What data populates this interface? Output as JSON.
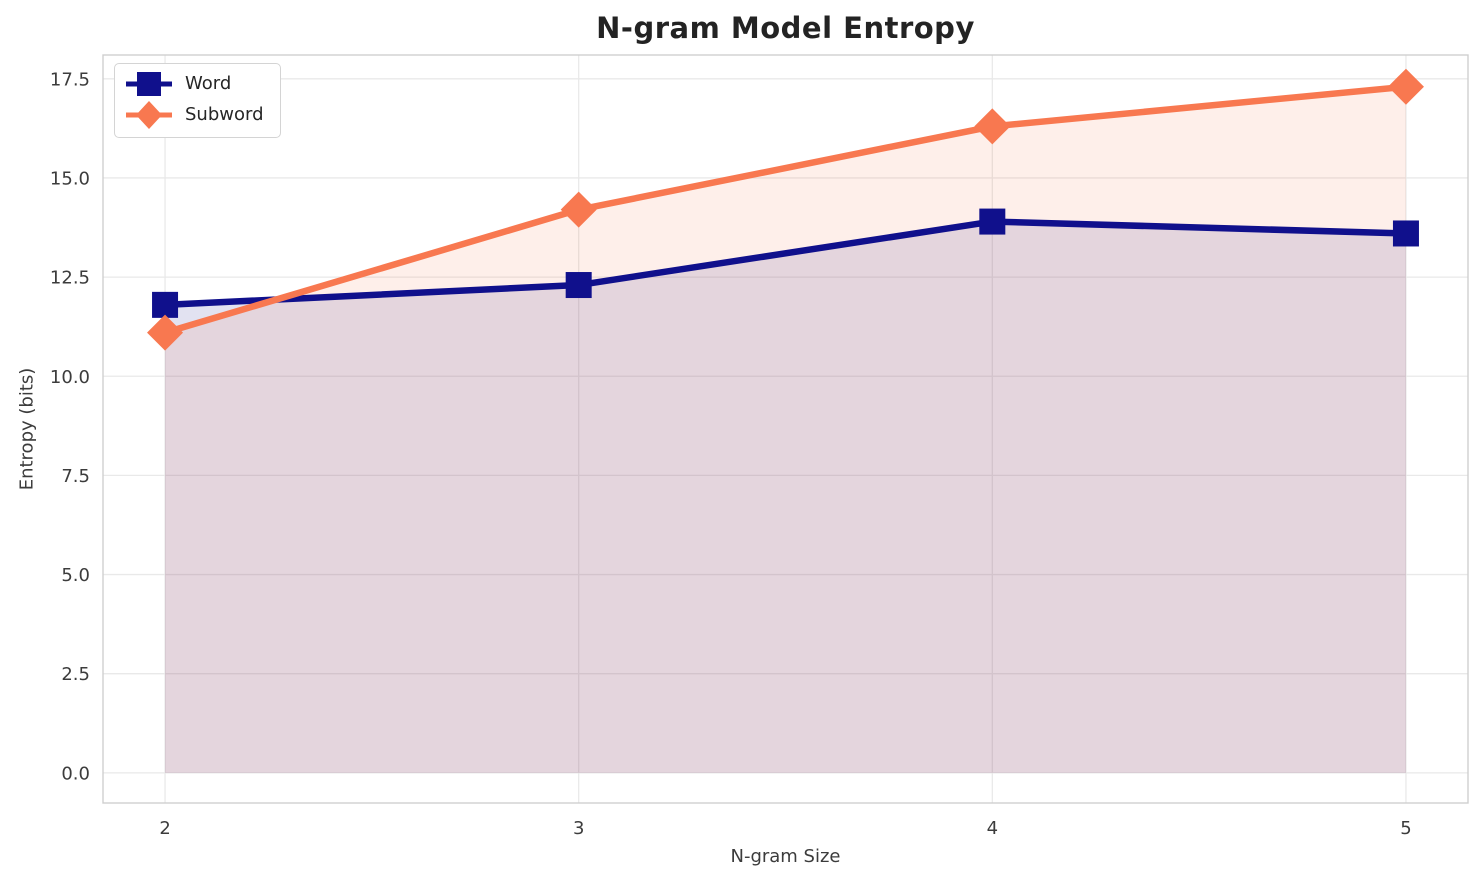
{
  "chart_data": {
    "type": "line",
    "title": "N-gram Model Entropy",
    "xlabel": "N-gram Size",
    "ylabel": "Entropy (bits)",
    "x": [
      2,
      3,
      4,
      5
    ],
    "xtick_labels": [
      "2",
      "3",
      "4",
      "5"
    ],
    "yticks": [
      0.0,
      2.5,
      5.0,
      7.5,
      10.0,
      12.5,
      15.0,
      17.5
    ],
    "ytick_labels": [
      "0.0",
      "2.5",
      "5.0",
      "7.5",
      "10.0",
      "12.5",
      "15.0",
      "17.5"
    ],
    "xlim": [
      1.85,
      5.15
    ],
    "ylim": [
      -0.76,
      18.1
    ],
    "grid": true,
    "legend_position": "upper left",
    "fill_to_zero": true,
    "fill_alpha": 0.12,
    "series": [
      {
        "name": "Word",
        "values": [
          11.8,
          12.3,
          13.9,
          13.6
        ],
        "color": "#10108c",
        "marker": "square"
      },
      {
        "name": "Subword",
        "values": [
          11.1,
          14.2,
          16.3,
          17.3
        ],
        "color": "#f87850",
        "marker": "diamond"
      }
    ],
    "colors": {
      "grid": "#e9e9e9",
      "spine": "#cfcfcf",
      "title_text": "#232323",
      "tick_text": "#3c3c3c",
      "legend_text": "#262626"
    }
  }
}
